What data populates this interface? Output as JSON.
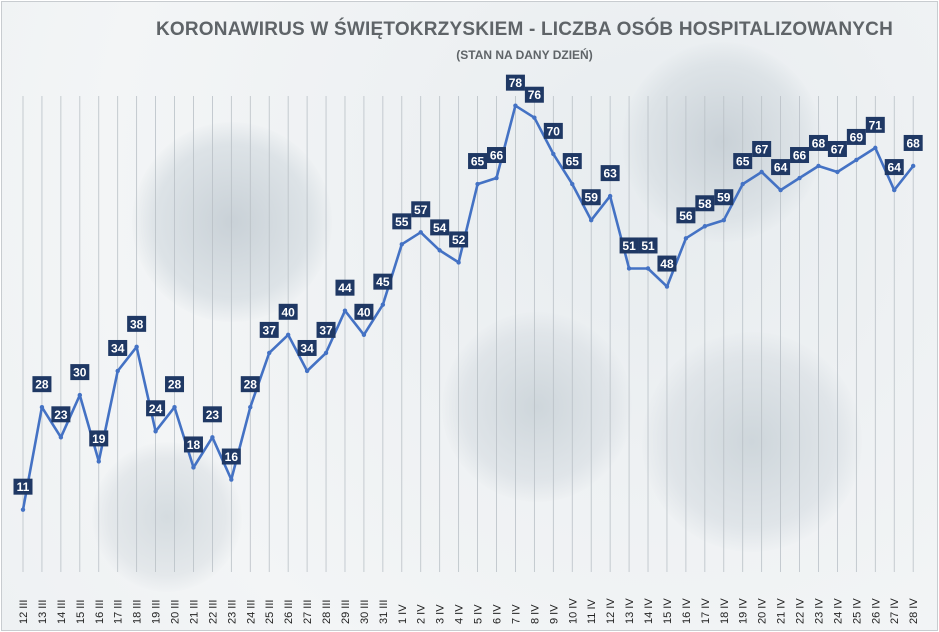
{
  "chart_data": {
    "type": "line",
    "title": "KORONAWIRUS W ŚWIĘTOKRZYSKIEM - LICZBA OSÓB HOSPITALIZOWANYCH",
    "subtitle": "(STAN NA DANY DZIEŃ)",
    "xlabel": "",
    "ylabel": "",
    "grid": "vertical",
    "data_labels": true,
    "colors": {
      "line": "#4472c4",
      "label_bg": "#1f3864",
      "label_text": "#ffffff",
      "title": "#5f6468",
      "tick": "#222222"
    },
    "categories": [
      "12 III",
      "13 III",
      "14 III",
      "15 III",
      "16 III",
      "17 III",
      "18 III",
      "19 III",
      "20 III",
      "21 III",
      "22 III",
      "23 III",
      "24 III",
      "25 III",
      "26 III",
      "27 III",
      "28 III",
      "29 III",
      "30 III",
      "31 III",
      "1 IV",
      "2 IV",
      "3 IV",
      "4 IV",
      "5 IV",
      "6 IV",
      "7 IV",
      "8 IV",
      "9 IV",
      "10 IV",
      "11 IV",
      "12 IV",
      "13 IV",
      "14 IV",
      "15 IV",
      "16 IV",
      "17 IV",
      "18 IV",
      "19 IV",
      "20 IV",
      "21 IV",
      "22 IV",
      "23 IV",
      "24 IV",
      "25 IV",
      "26 IV",
      "27 IV",
      "28 IV"
    ],
    "values": [
      11,
      28,
      23,
      30,
      19,
      34,
      38,
      24,
      28,
      18,
      23,
      16,
      28,
      37,
      40,
      34,
      37,
      44,
      40,
      45,
      55,
      57,
      54,
      52,
      65,
      66,
      78,
      76,
      70,
      65,
      59,
      63,
      51,
      51,
      48,
      56,
      58,
      59,
      65,
      67,
      64,
      66,
      68,
      67,
      69,
      71,
      64,
      68
    ]
  }
}
